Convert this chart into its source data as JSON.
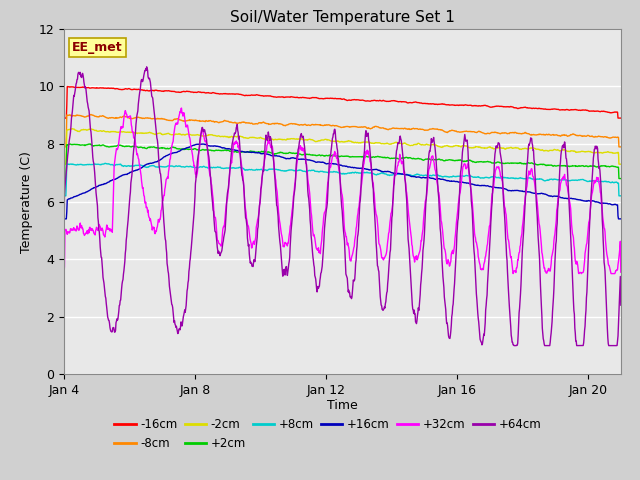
{
  "title": "Soil/Water Temperature Set 1",
  "xlabel": "Time",
  "ylabel": "Temperature (C)",
  "ylim": [
    0,
    12
  ],
  "xlim": [
    0,
    17
  ],
  "xtick_positions": [
    0,
    4,
    8,
    12,
    16
  ],
  "xtick_labels": [
    "Jan 4",
    "Jan 8",
    "Jan 12",
    "Jan 16",
    "Jan 20"
  ],
  "ytick_positions": [
    0,
    2,
    4,
    6,
    8,
    10,
    12
  ],
  "fig_bg_color": "#d0d0d0",
  "plot_bg_color": "#e8e8e8",
  "annotation_text": "EE_met",
  "annotation_bg": "#ffff99",
  "annotation_border": "#b8a000",
  "series": [
    {
      "label": "-16cm",
      "color": "#ff0000"
    },
    {
      "label": "-8cm",
      "color": "#ff8800"
    },
    {
      "label": "-2cm",
      "color": "#dddd00"
    },
    {
      "label": "+2cm",
      "color": "#00cc00"
    },
    {
      "label": "+8cm",
      "color": "#00cccc"
    },
    {
      "label": "+16cm",
      "color": "#0000bb"
    },
    {
      "label": "+32cm",
      "color": "#ff00ff"
    },
    {
      "label": "+64cm",
      "color": "#9900aa"
    }
  ],
  "legend_ncol": 6,
  "legend_rows": [
    [
      "-16cm",
      "-8cm",
      "-2cm",
      "+2cm",
      "+8cm",
      "+16cm"
    ],
    [
      "+32cm",
      "+64cm"
    ]
  ]
}
